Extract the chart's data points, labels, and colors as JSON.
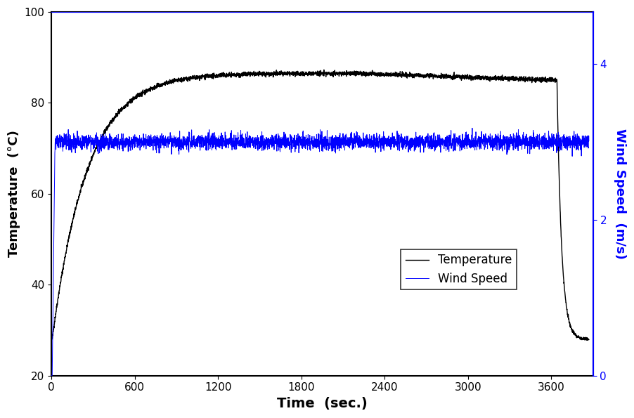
{
  "title": "",
  "xlabel": "Time  (sec.)",
  "ylabel_left": "Temperature  (°C)",
  "ylabel_right": "Wind Speed  (m/s)",
  "xlim": [
    0,
    3900
  ],
  "ylim_left": [
    20,
    100
  ],
  "ylim_right": [
    0,
    4.666666666
  ],
  "xticks": [
    0,
    600,
    1200,
    1800,
    2400,
    3000,
    3600
  ],
  "yticks_left": [
    20,
    40,
    60,
    80,
    100
  ],
  "yticks_right": [
    0,
    2,
    4
  ],
  "temp_color": "#000000",
  "wind_color": "#0000FF",
  "legend_labels": [
    "Temperature",
    "Wind Speed"
  ],
  "background_color": "#ffffff",
  "temp_plateau": 86.5,
  "temp_drop_start": 3640,
  "temp_end": 28.0,
  "temp_start": 28.0,
  "wind_steady": 3.0,
  "wind_noise": 0.05,
  "total_time": 3870,
  "wind_start_jump": 25
}
